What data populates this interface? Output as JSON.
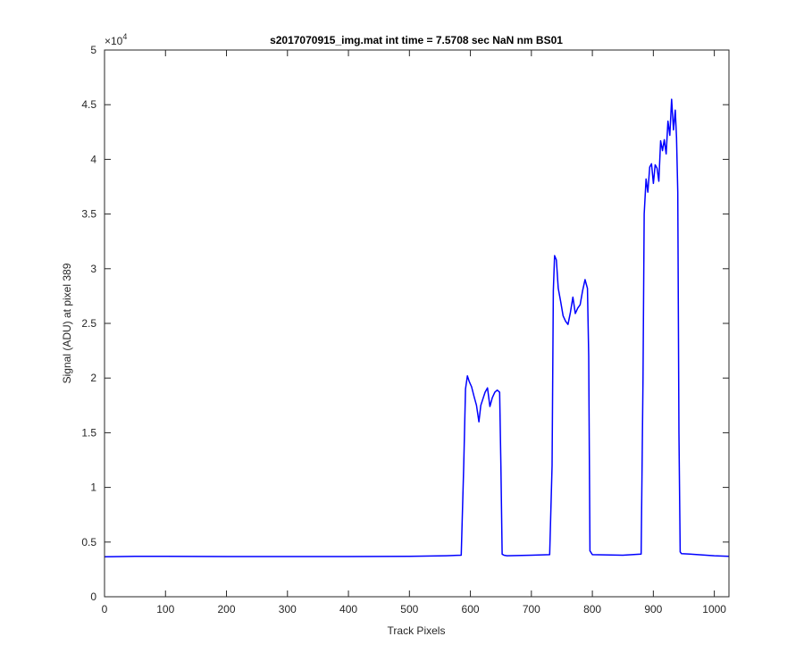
{
  "chart_data": {
    "type": "line",
    "title": "s2017070915_img.mat int time = 7.5708 sec  NaN nm BS01",
    "xlabel": "Track Pixels",
    "ylabel": "Signal (ADU) at pixel 389",
    "xlim": [
      0,
      1024
    ],
    "ylim": [
      0,
      50000
    ],
    "y_exponent_label": "×10",
    "y_exponent_power": "4",
    "x_ticks": [
      0,
      100,
      200,
      300,
      400,
      500,
      600,
      700,
      800,
      900,
      1000
    ],
    "x_tick_labels": [
      "0",
      "100",
      "200",
      "300",
      "400",
      "500",
      "600",
      "700",
      "800",
      "900",
      "1000"
    ],
    "y_ticks": [
      0,
      5000,
      10000,
      15000,
      20000,
      25000,
      30000,
      35000,
      40000,
      45000,
      50000
    ],
    "y_tick_labels": [
      "0",
      "0.5",
      "1",
      "1.5",
      "2",
      "2.5",
      "3",
      "3.5",
      "4",
      "4.5",
      "5"
    ],
    "grid": false,
    "line_color": "#0000ff",
    "series": [
      {
        "x": [
          0,
          50,
          100,
          200,
          300,
          400,
          500,
          560,
          585,
          589,
          592,
          595,
          598,
          602,
          606,
          610,
          614,
          617,
          620,
          624,
          628,
          632,
          636,
          640,
          644,
          648,
          650,
          652,
          655,
          660,
          700,
          730,
          734,
          736,
          738,
          741,
          744,
          748,
          752,
          756,
          760,
          764,
          768,
          772,
          776,
          780,
          784,
          788,
          792,
          794,
          796,
          800,
          850,
          880,
          883,
          885,
          888,
          891,
          894,
          897,
          900,
          903,
          906,
          909,
          912,
          915,
          918,
          921,
          924,
          927,
          930,
          933,
          936,
          938,
          940,
          942,
          944,
          946,
          960,
          1000,
          1024
        ],
        "y": [
          3650,
          3700,
          3700,
          3680,
          3680,
          3680,
          3700,
          3750,
          3800,
          12000,
          19000,
          20200,
          19700,
          19200,
          18300,
          17500,
          16000,
          17500,
          18000,
          18700,
          19100,
          17400,
          18200,
          18700,
          18900,
          18700,
          12000,
          3900,
          3800,
          3750,
          3800,
          3850,
          12000,
          28000,
          31200,
          30800,
          28200,
          27000,
          25700,
          25200,
          24900,
          26000,
          27400,
          25900,
          26400,
          26700,
          28000,
          29000,
          28200,
          22000,
          4200,
          3850,
          3800,
          3900,
          20000,
          35000,
          38200,
          37000,
          39300,
          39600,
          37800,
          39500,
          39200,
          38000,
          41700,
          40800,
          41800,
          40500,
          43500,
          42200,
          45500,
          42700,
          44500,
          42000,
          37000,
          15000,
          4100,
          3950,
          3900,
          3750,
          3700
        ]
      }
    ]
  }
}
